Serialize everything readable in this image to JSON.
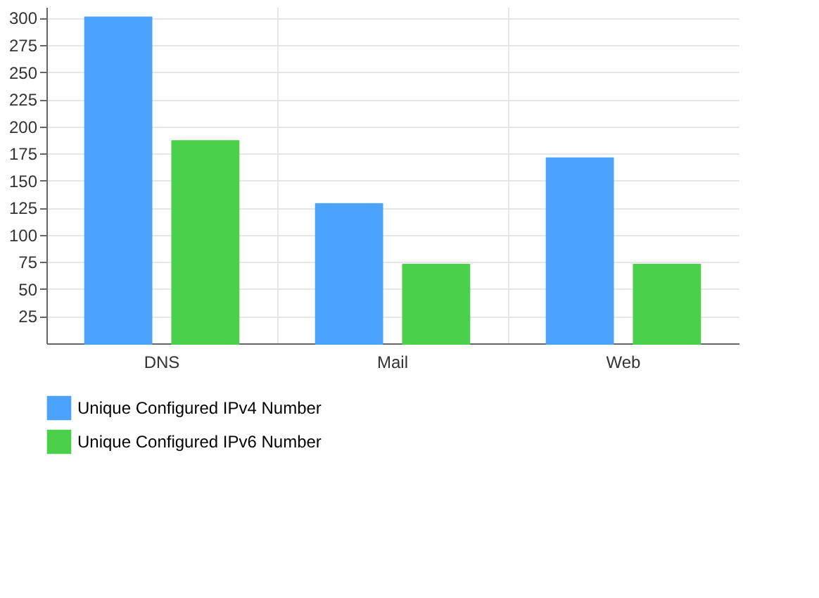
{
  "chart_data": {
    "type": "bar",
    "categories": [
      "DNS",
      "Mail",
      "Web"
    ],
    "series": [
      {
        "name": "Unique Configured IPv4 Number",
        "color": "#4ca3fd",
        "values": [
          300,
          128,
          170
        ]
      },
      {
        "name": "Unique Configured IPv6 Number",
        "color": "#4bd04b",
        "values": [
          186,
          72,
          72
        ]
      }
    ],
    "ylim": [
      0,
      310
    ],
    "yticks": [
      25,
      50,
      75,
      100,
      125,
      150,
      175,
      200,
      225,
      250,
      275,
      300
    ],
    "grid": true,
    "legend": "bottom"
  }
}
